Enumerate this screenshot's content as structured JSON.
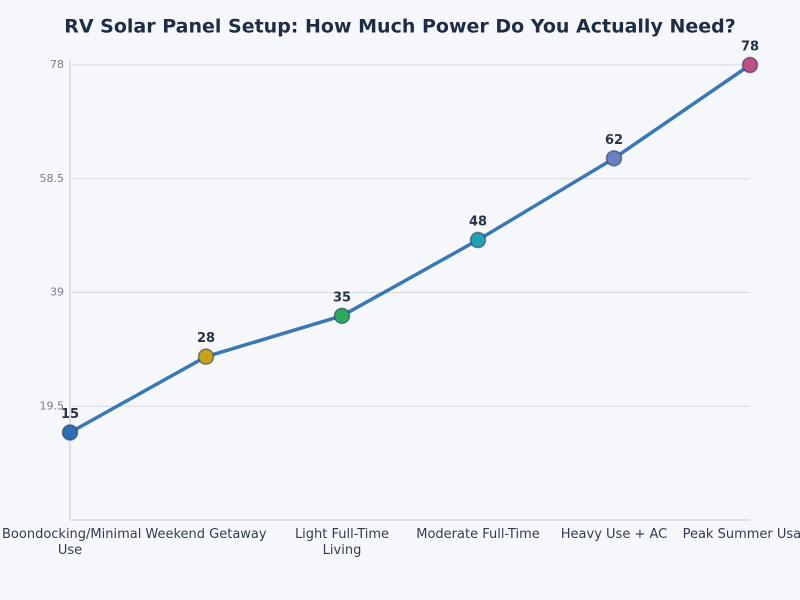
{
  "chart_data": {
    "type": "line",
    "title": "RV Solar Panel Setup: How Much Power Do You Actually Need?",
    "categories": [
      "Boondocking/Minimal Use",
      "Weekend Getaway",
      "Light Full-Time Living",
      "Moderate Full-Time",
      "Heavy Use + AC",
      "Peak Summer Usage"
    ],
    "series": [
      {
        "color": "#3a78b5",
        "values": [
          15,
          28,
          35,
          48,
          62,
          78
        ],
        "point_colors": [
          "#2e6db4",
          "#c8a21e",
          "#2ea860",
          "#22a3b5",
          "#6a7fc0",
          "#c04f86"
        ]
      }
    ],
    "ylim": [
      0,
      78
    ],
    "yticks": [
      19.5,
      39,
      58.5,
      78
    ],
    "grid": true
  }
}
